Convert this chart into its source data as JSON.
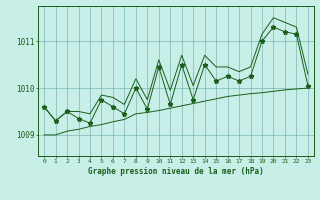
{
  "title": "Graphe pression niveau de la mer (hPa)",
  "background_color": "#c8eee8",
  "grid_color": "#7ab8b0",
  "line_color": "#1a5e1a",
  "x_labels": [
    "0",
    "1",
    "2",
    "3",
    "4",
    "5",
    "6",
    "7",
    "8",
    "9",
    "10",
    "11",
    "12",
    "13",
    "14",
    "15",
    "16",
    "17",
    "18",
    "19",
    "20",
    "21",
    "22",
    "23"
  ],
  "ylim": [
    1008.55,
    1011.75
  ],
  "yticks": [
    1009,
    1010,
    1011
  ],
  "hours": [
    0,
    1,
    2,
    3,
    4,
    5,
    6,
    7,
    8,
    9,
    10,
    11,
    12,
    13,
    14,
    15,
    16,
    17,
    18,
    19,
    20,
    21,
    22,
    23
  ],
  "main_values": [
    1009.6,
    1009.3,
    1009.5,
    1009.35,
    1009.25,
    1009.75,
    1009.6,
    1009.45,
    1010.0,
    1009.55,
    1010.45,
    1009.65,
    1010.5,
    1009.75,
    1010.5,
    1010.15,
    1010.25,
    1010.15,
    1010.25,
    1011.0,
    1011.3,
    1011.2,
    1011.15,
    1010.05
  ],
  "min_values": [
    1009.0,
    1009.0,
    1009.08,
    1009.12,
    1009.18,
    1009.22,
    1009.28,
    1009.33,
    1009.45,
    1009.48,
    1009.52,
    1009.57,
    1009.62,
    1009.67,
    1009.72,
    1009.77,
    1009.82,
    1009.85,
    1009.88,
    1009.9,
    1009.93,
    1009.96,
    1009.98,
    1010.0
  ],
  "max_values": [
    1009.6,
    1009.3,
    1009.5,
    1009.5,
    1009.45,
    1009.85,
    1009.8,
    1009.65,
    1010.2,
    1009.75,
    1010.6,
    1009.95,
    1010.7,
    1010.05,
    1010.7,
    1010.45,
    1010.45,
    1010.35,
    1010.45,
    1011.15,
    1011.5,
    1011.4,
    1011.3,
    1010.3
  ]
}
